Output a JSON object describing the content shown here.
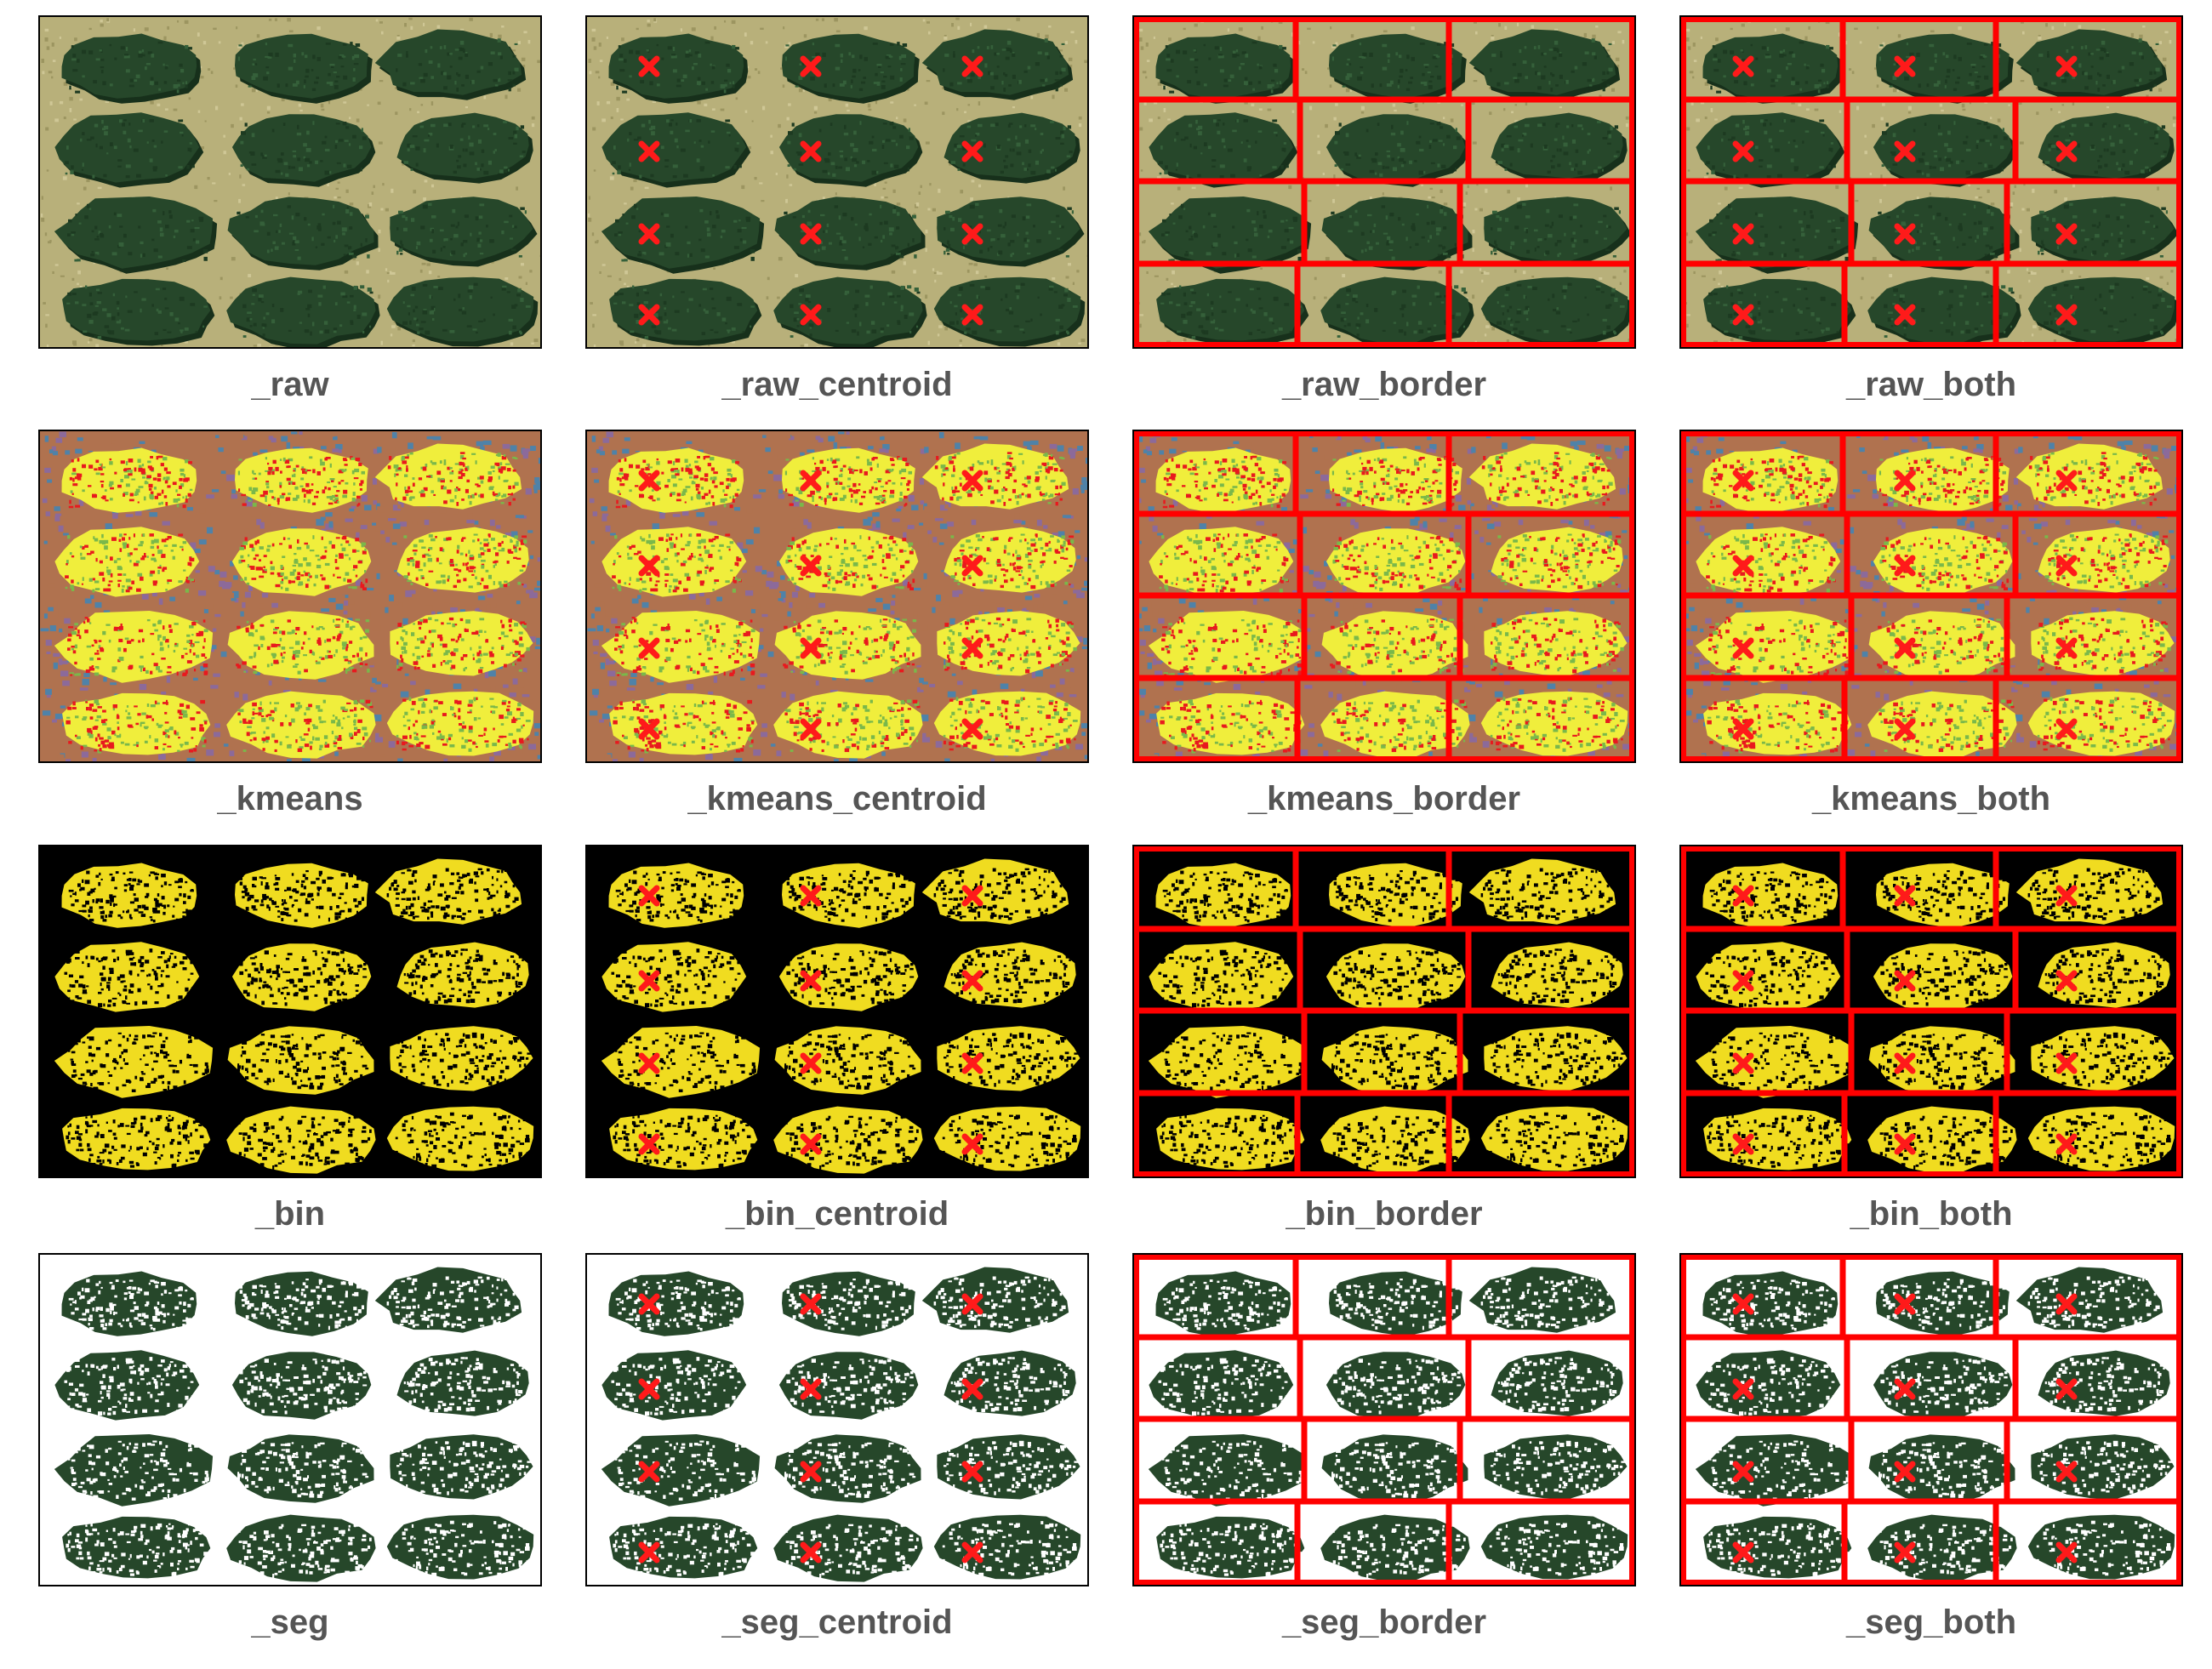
{
  "rows": [
    {
      "mode": "raw",
      "panels": [
        {
          "caption": "_raw",
          "centroid": false,
          "border": false
        },
        {
          "caption": "_raw_centroid",
          "centroid": true,
          "border": false
        },
        {
          "caption": "_raw_border",
          "centroid": false,
          "border": true
        },
        {
          "caption": "_raw_both",
          "centroid": true,
          "border": true
        }
      ]
    },
    {
      "mode": "kmeans",
      "panels": [
        {
          "caption": "_kmeans",
          "centroid": false,
          "border": false
        },
        {
          "caption": "_kmeans_centroid",
          "centroid": true,
          "border": false
        },
        {
          "caption": "_kmeans_border",
          "centroid": false,
          "border": true
        },
        {
          "caption": "_kmeans_both",
          "centroid": true,
          "border": true
        }
      ]
    },
    {
      "mode": "bin",
      "panels": [
        {
          "caption": "_bin",
          "centroid": false,
          "border": false
        },
        {
          "caption": "_bin_centroid",
          "centroid": true,
          "border": false
        },
        {
          "caption": "_bin_border",
          "centroid": false,
          "border": true
        },
        {
          "caption": "_bin_both",
          "centroid": true,
          "border": true
        }
      ]
    },
    {
      "mode": "seg",
      "panels": [
        {
          "caption": "_seg",
          "centroid": false,
          "border": false
        },
        {
          "caption": "_seg_centroid",
          "centroid": true,
          "border": false
        },
        {
          "caption": "_seg_border",
          "centroid": false,
          "border": true
        },
        {
          "caption": "_seg_both",
          "centroid": true,
          "border": true
        }
      ]
    }
  ],
  "colors": {
    "ground": "#b8b07a",
    "foliage": "#26472a",
    "foliage_shadow": "#17301b",
    "kmeans_bg": [
      "#4f82a8",
      "#b0724f",
      "#8c6a9a"
    ],
    "kmeans_fg": [
      "#f0ee3c",
      "#7ab84a",
      "#e8191e"
    ],
    "bin_fg": "#f0dc20",
    "bin_bg": "#000000",
    "seg_bg": "#ffffff",
    "marker": "#ff1a1a",
    "border_line": "#ff0000"
  }
}
